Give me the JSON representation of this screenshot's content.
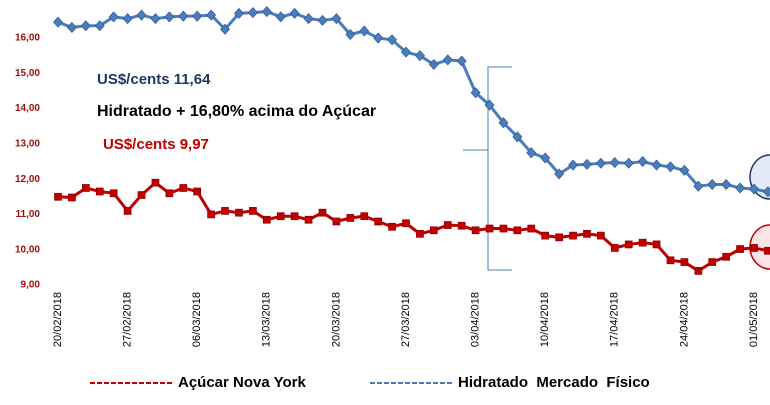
{
  "chart_data": {
    "type": "line",
    "categories": [
      "20/02/2018",
      null,
      null,
      null,
      null,
      "27/02/2018",
      null,
      null,
      null,
      null,
      "06/03/2018",
      null,
      null,
      null,
      null,
      "13/03/2018",
      null,
      null,
      null,
      null,
      "20/03/2018",
      null,
      null,
      null,
      null,
      "27/03/2018",
      null,
      null,
      null,
      null,
      "03/04/2018",
      null,
      null,
      null,
      null,
      "10/04/2018",
      null,
      null,
      null,
      null,
      "17/04/2018",
      null,
      null,
      null,
      null,
      "24/04/2018",
      null,
      null,
      null,
      null,
      "01/05/2018",
      null
    ],
    "series": [
      {
        "name": "Açúcar Nova York",
        "color": "#c00000",
        "marker": "square",
        "values": [
          11.5,
          11.48,
          11.75,
          11.65,
          11.6,
          11.1,
          11.55,
          11.9,
          11.6,
          11.75,
          11.65,
          11.0,
          11.1,
          11.05,
          11.1,
          10.85,
          10.95,
          10.95,
          10.85,
          11.05,
          10.8,
          10.9,
          10.95,
          10.8,
          10.65,
          10.75,
          10.45,
          10.55,
          10.7,
          10.68,
          10.55,
          10.6,
          10.6,
          10.55,
          10.6,
          10.4,
          10.35,
          10.4,
          10.45,
          10.4,
          10.05,
          10.15,
          10.2,
          10.15,
          9.7,
          9.65,
          9.4,
          9.65,
          9.8,
          10.02,
          10.05,
          9.97
        ]
      },
      {
        "name": "Hidratado  Mercado  Físico",
        "color": "#4a7ebb",
        "marker": "diamond",
        "values": [
          16.45,
          16.3,
          16.35,
          16.35,
          16.6,
          16.55,
          16.65,
          16.55,
          16.6,
          16.62,
          16.62,
          16.65,
          16.25,
          16.7,
          16.72,
          16.75,
          16.6,
          16.7,
          16.55,
          16.5,
          16.55,
          16.1,
          16.2,
          16.0,
          15.95,
          15.6,
          15.5,
          15.25,
          15.38,
          15.35,
          14.45,
          14.1,
          13.6,
          13.2,
          12.75,
          12.6,
          12.15,
          12.4,
          12.42,
          12.45,
          12.47,
          12.45,
          12.5,
          12.4,
          12.35,
          12.25,
          11.8,
          11.85,
          11.85,
          11.75,
          11.72,
          11.64
        ]
      }
    ],
    "ylim": [
      9,
      16.5
    ],
    "yticks": [
      {
        "value": 9,
        "label": "9,00"
      },
      {
        "value": 10,
        "label": "10,00"
      },
      {
        "value": 11,
        "label": "11,00"
      },
      {
        "value": 12,
        "label": "12,00"
      },
      {
        "value": 13,
        "label": "13,00"
      },
      {
        "value": 14,
        "label": "14,00"
      },
      {
        "value": 15,
        "label": "15,00"
      },
      {
        "value": 16,
        "label": "16,00"
      }
    ],
    "grid": false,
    "annotations": [
      "US$/cents  11,64",
      "Hidratado + 16,80% acima do Açúcar",
      "US$/cents  9,97"
    ]
  }
}
